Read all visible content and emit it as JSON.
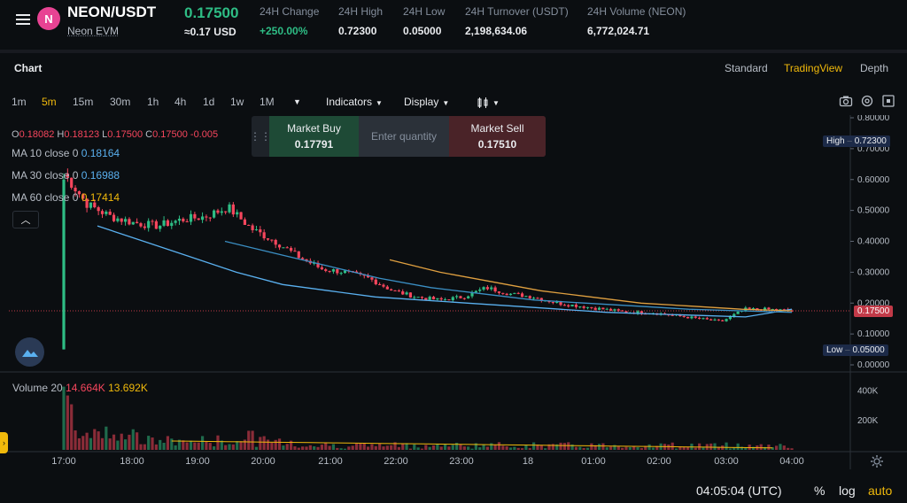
{
  "header": {
    "pair": "NEON/USDT",
    "pair_subtitle": "Neon EVM",
    "logo_letter": "N",
    "last_price": "0.17500",
    "last_price_usd": "≈0.17 USD",
    "stats": [
      {
        "label": "24H Change",
        "value": "+250.00%",
        "positive": true
      },
      {
        "label": "24H High",
        "value": "0.72300"
      },
      {
        "label": "24H Low",
        "value": "0.05000"
      },
      {
        "label": "24H Turnover (USDT)",
        "value": "2,198,634.06"
      },
      {
        "label": "24H Volume (NEON)",
        "value": "6,772,024.71"
      }
    ]
  },
  "chart_header": {
    "title": "Chart",
    "views": [
      "Standard",
      "TradingView",
      "Depth"
    ],
    "active_view": "TradingView"
  },
  "toolbar": {
    "timeframes": [
      "1m",
      "5m",
      "15m",
      "30m",
      "1h",
      "4h",
      "1d",
      "1w",
      "1M"
    ],
    "active_timeframe": "5m",
    "more_label": "▼",
    "indicators_label": "Indicators",
    "display_label": "Display",
    "chart_type_icon": "candle-type-icon"
  },
  "legend": {
    "ohlc": {
      "o_label": "O",
      "o": "0.18082",
      "h_label": "H",
      "h": "0.18123",
      "l_label": "L",
      "l": "0.17500",
      "c_label": "C",
      "c": "0.17500",
      "change": "-0.005"
    },
    "ma10": {
      "label": "MA 10 close 0",
      "value": "0.18164"
    },
    "ma30": {
      "label": "MA 30 close 0",
      "value": "0.16988"
    },
    "ma60": {
      "label": "MA 60 close 0",
      "value": "0.17414"
    },
    "collapse_icon": "chevron-up-icon"
  },
  "trade_widget": {
    "buy_label": "Market Buy",
    "buy_price": "0.17791",
    "qty_placeholder": "Enter quantity",
    "sell_label": "Market Sell",
    "sell_price": "0.17510"
  },
  "price_axis": {
    "ticks": [
      "0.80000",
      "0.70000",
      "0.60000",
      "0.50000",
      "0.40000",
      "0.30000",
      "0.20000",
      "0.10000",
      "0.00000"
    ],
    "high_label": "High",
    "high_value": "0.72300",
    "last_value": "0.17500",
    "low_label": "Low",
    "low_value": "0.05000"
  },
  "volume": {
    "legend_label": "Volume 20",
    "value_a": "14.664K",
    "value_b": "13.692K",
    "axis_ticks": [
      "400K",
      "200K"
    ]
  },
  "time_axis": [
    "17:00",
    "18:00",
    "19:00",
    "20:00",
    "21:00",
    "22:00",
    "23:00",
    "18",
    "01:00",
    "02:00",
    "03:00",
    "04:00"
  ],
  "footer": {
    "time": "04:05:04 (UTC)",
    "percent": "%",
    "log": "log",
    "auto": "auto"
  },
  "colors": {
    "up": "#2ebd85",
    "down": "#f6465d",
    "accent": "#f0b90b",
    "ma_blue": "#5ab0ef",
    "ma_orange": "#e0a040"
  },
  "chart_data": {
    "type": "candlestick",
    "interval": "5m",
    "x_labels": [
      "17:00",
      "18:00",
      "19:00",
      "20:00",
      "21:00",
      "22:00",
      "23:00",
      "18",
      "01:00",
      "02:00",
      "03:00",
      "04:00"
    ],
    "ylim": [
      0,
      0.8
    ],
    "price_path": [
      [
        0.05,
        0.62
      ],
      [
        0.58,
        0.52
      ],
      [
        0.5,
        0.48
      ],
      [
        0.47,
        0.46
      ],
      [
        0.46,
        0.45
      ],
      [
        0.45,
        0.47
      ],
      [
        0.47,
        0.48
      ],
      [
        0.49,
        0.51
      ],
      [
        0.5,
        0.44
      ],
      [
        0.44,
        0.4
      ],
      [
        0.4,
        0.35
      ],
      [
        0.34,
        0.31
      ],
      [
        0.31,
        0.3
      ],
      [
        0.3,
        0.28
      ],
      [
        0.27,
        0.24
      ],
      [
        0.24,
        0.22
      ],
      [
        0.22,
        0.21
      ],
      [
        0.21,
        0.22
      ],
      [
        0.22,
        0.25
      ],
      [
        0.25,
        0.23
      ],
      [
        0.23,
        0.22
      ],
      [
        0.22,
        0.2
      ],
      [
        0.2,
        0.19
      ],
      [
        0.19,
        0.18
      ],
      [
        0.18,
        0.17
      ],
      [
        0.17,
        0.17
      ],
      [
        0.17,
        0.16
      ],
      [
        0.16,
        0.15
      ],
      [
        0.15,
        0.14
      ],
      [
        0.14,
        0.18
      ],
      [
        0.18,
        0.18
      ],
      [
        0.18,
        0.175
      ]
    ],
    "ma10_points": [
      [
        0.45
      ],
      [
        0.4
      ],
      [
        0.35
      ],
      [
        0.3
      ],
      [
        0.26
      ],
      [
        0.24
      ],
      [
        0.22
      ],
      [
        0.21
      ],
      [
        0.2
      ],
      [
        0.19
      ],
      [
        0.18
      ],
      [
        0.17
      ],
      [
        0.165
      ],
      [
        0.16
      ],
      [
        0.155
      ],
      [
        0.18
      ]
    ],
    "ma30_points": [
      [
        0.4
      ],
      [
        0.36
      ],
      [
        0.32
      ],
      [
        0.28
      ],
      [
        0.25
      ],
      [
        0.23
      ],
      [
        0.21
      ],
      [
        0.2
      ],
      [
        0.19
      ],
      [
        0.18
      ],
      [
        0.175
      ],
      [
        0.17
      ]
    ],
    "ma60_points": [
      [
        0.34
      ],
      [
        0.3
      ],
      [
        0.27
      ],
      [
        0.24
      ],
      [
        0.22
      ],
      [
        0.2
      ],
      [
        0.19
      ],
      [
        0.18
      ],
      [
        0.175
      ]
    ],
    "volume_ylim": [
      0,
      500
    ],
    "volume_unit": "K"
  }
}
